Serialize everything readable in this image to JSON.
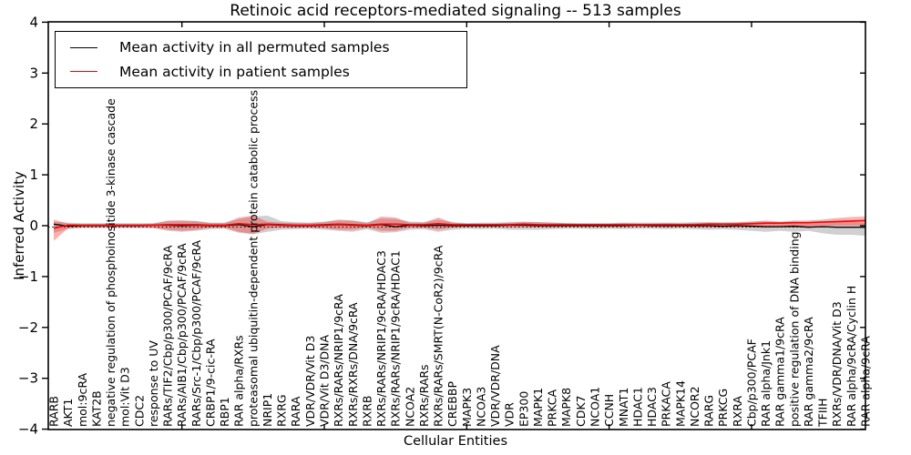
{
  "figure": {
    "title": "Retinoic acid receptors-mediated signaling -- 513 samples",
    "background": "#ffffff"
  },
  "legend": {
    "position": "upper left",
    "entries": [
      {
        "label": "Mean activity in all permuted samples",
        "color": "#000000"
      },
      {
        "label": "Mean activity in patient samples",
        "color": "#ff0000"
      }
    ]
  },
  "axes": {
    "ylabel": "Inferred Activity",
    "xlabel": "Cellular Entities",
    "yticks": [
      {
        "value": 4,
        "label": "4"
      },
      {
        "value": 3,
        "label": "3"
      },
      {
        "value": 2,
        "label": "2"
      },
      {
        "value": 1,
        "label": "1"
      },
      {
        "value": 0,
        "label": "0"
      },
      {
        "value": -1,
        "label": "−1"
      },
      {
        "value": -2,
        "label": "−2"
      },
      {
        "value": -3,
        "label": "−3"
      },
      {
        "value": -4,
        "label": "−4"
      }
    ]
  },
  "chart_data": {
    "type": "line",
    "title": "Retinoic acid receptors-mediated signaling -- 513 samples",
    "xlabel": "Cellular Entities",
    "ylabel": "Inferred Activity",
    "ylim": [
      -4,
      4
    ],
    "grid": false,
    "zero_reference_line": "dotted",
    "x_major_tick_every": 10,
    "legend_position": "upper left",
    "categories": [
      "RARB",
      "AKT1",
      "mol:9cRA",
      "KAT2B",
      "negative regulation of phosphoinositide 3-kinase cascade",
      "mol:Vit D3",
      "CDC2",
      "response to UV",
      "RARs/TIF2/Cbp/p300/PCAF/9cRA",
      "RARs/AIB1/Cbp/p300/PCAF/9cRA",
      "RARs/Src-1/Cbp/p300/PCAF/9cRA",
      "CRBP1/9-cic-RA",
      "RBP1",
      "RAR alpha/RXRs",
      "proteasomal ubiquitin-dependent protein catabolic process",
      "NRIP1",
      "RXRG",
      "RARA",
      "VDR/VDR/Vit D3",
      "VDR/Vit D3/DNA",
      "RXRs/RARs/NRIP1/9cRA",
      "RXRs/RXRs/DNA/9cRA",
      "RXRB",
      "RXRs/RARs/NRIP1/9cRA/HDAC3",
      "RXRs/RARs/NRIP1/9cRA/HDAC1",
      "NCOA2",
      "RXRs/RARs",
      "RXRs/RARs/SMRT(N-CoR2)/9cRA",
      "CREBBP",
      "MAPK3",
      "NCOA3",
      "VDR/VDR/DNA",
      "VDR",
      "EP300",
      "MAPK1",
      "PRKCA",
      "MAPK8",
      "CDK7",
      "NCOA1",
      "CCNH",
      "MNAT1",
      "HDAC1",
      "HDAC3",
      "PRKACA",
      "MAPK14",
      "NCOR2",
      "RARG",
      "PRKCG",
      "RXRA",
      "Cbp/p300/PCAF",
      "RAR alpha/Jnk1",
      "RAR gamma1/9cRA",
      "positive regulation of DNA binding",
      "RAR gamma2/9cRA",
      "TFIIH",
      "RXRs/VDR/DNA/Vit D3",
      "RAR alpha/9cRA/Cyclin H",
      "RAR alpha/9cRA"
    ],
    "series": [
      {
        "name": "Mean activity in all permuted samples",
        "color": "#000000",
        "band_color": "rgba(120,120,120,0.35)",
        "values": [
          0.03,
          -0.01,
          0.0,
          0.0,
          0.0,
          0.0,
          0.0,
          0.01,
          0.01,
          0.0,
          0.01,
          0.0,
          0.0,
          0.02,
          -0.02,
          0.02,
          0.01,
          0.0,
          0.0,
          0.01,
          0.02,
          0.01,
          0.0,
          0.02,
          -0.02,
          0.01,
          0.0,
          0.01,
          0.0,
          0.0,
          0.0,
          0.0,
          0.01,
          0.01,
          0.0,
          0.0,
          0.0,
          0.0,
          0.0,
          0.0,
          0.0,
          0.01,
          0.0,
          0.0,
          0.0,
          0.0,
          0.0,
          -0.01,
          0.0,
          -0.01,
          -0.02,
          -0.02,
          -0.01,
          -0.03,
          -0.02,
          -0.03,
          -0.03,
          -0.03
        ],
        "band_upper": [
          0.08,
          0.06,
          0.05,
          0.05,
          0.05,
          0.05,
          0.05,
          0.05,
          0.09,
          0.1,
          0.09,
          0.06,
          0.06,
          0.13,
          0.18,
          0.2,
          0.09,
          0.07,
          0.06,
          0.08,
          0.1,
          0.1,
          0.07,
          0.14,
          0.13,
          0.08,
          0.07,
          0.12,
          0.07,
          0.05,
          0.06,
          0.06,
          0.07,
          0.08,
          0.07,
          0.06,
          0.05,
          0.05,
          0.05,
          0.05,
          0.06,
          0.06,
          0.06,
          0.06,
          0.06,
          0.07,
          0.07,
          0.07,
          0.07,
          0.08,
          0.08,
          0.07,
          0.08,
          0.06,
          0.08,
          0.08,
          0.08,
          0.06
        ],
        "band_lower": [
          -0.14,
          -0.07,
          -0.05,
          -0.05,
          -0.05,
          -0.05,
          -0.05,
          -0.05,
          -0.1,
          -0.12,
          -0.1,
          -0.07,
          -0.06,
          -0.14,
          -0.17,
          -0.12,
          -0.08,
          -0.07,
          -0.06,
          -0.08,
          -0.1,
          -0.12,
          -0.07,
          -0.14,
          -0.13,
          -0.08,
          -0.07,
          -0.12,
          -0.08,
          -0.06,
          -0.07,
          -0.06,
          -0.08,
          -0.08,
          -0.08,
          -0.07,
          -0.06,
          -0.06,
          -0.07,
          -0.06,
          -0.07,
          -0.06,
          -0.06,
          -0.07,
          -0.06,
          -0.07,
          -0.08,
          -0.07,
          -0.08,
          -0.1,
          -0.12,
          -0.1,
          -0.12,
          -0.1,
          -0.15,
          -0.18,
          -0.18,
          -0.2
        ]
      },
      {
        "name": "Mean activity in patient samples",
        "color": "#ff0000",
        "band_color": "rgba(255,30,30,0.35)",
        "values": [
          -0.05,
          0.01,
          0.01,
          0.01,
          0.01,
          0.01,
          0.01,
          0.01,
          0.02,
          0.02,
          0.02,
          0.01,
          0.01,
          0.04,
          0.02,
          0.03,
          0.02,
          0.01,
          0.01,
          0.02,
          0.03,
          0.02,
          0.01,
          0.03,
          0.03,
          0.02,
          0.02,
          0.04,
          0.02,
          0.02,
          0.02,
          0.02,
          0.02,
          0.03,
          0.02,
          0.02,
          0.02,
          0.02,
          0.02,
          0.02,
          0.02,
          0.02,
          0.02,
          0.02,
          0.02,
          0.02,
          0.03,
          0.03,
          0.03,
          0.04,
          0.05,
          0.05,
          0.06,
          0.06,
          0.07,
          0.08,
          0.09,
          0.1
        ],
        "band_upper": [
          0.12,
          0.04,
          0.03,
          0.03,
          0.03,
          0.03,
          0.03,
          0.04,
          0.1,
          0.1,
          0.09,
          0.05,
          0.05,
          0.16,
          0.2,
          0.08,
          0.06,
          0.05,
          0.05,
          0.07,
          0.12,
          0.1,
          0.05,
          0.18,
          0.16,
          0.06,
          0.06,
          0.16,
          0.06,
          0.04,
          0.04,
          0.04,
          0.06,
          0.07,
          0.07,
          0.06,
          0.05,
          0.04,
          0.04,
          0.04,
          0.05,
          0.04,
          0.04,
          0.05,
          0.04,
          0.05,
          0.06,
          0.05,
          0.06,
          0.08,
          0.1,
          0.08,
          0.1,
          0.1,
          0.12,
          0.15,
          0.17,
          0.18
        ],
        "band_lower": [
          -0.3,
          -0.05,
          -0.03,
          -0.03,
          -0.03,
          -0.03,
          -0.03,
          -0.04,
          -0.08,
          -0.1,
          -0.08,
          -0.04,
          -0.04,
          -0.12,
          -0.16,
          -0.06,
          -0.04,
          -0.04,
          -0.04,
          -0.05,
          -0.08,
          -0.08,
          -0.04,
          -0.1,
          -0.1,
          -0.04,
          -0.04,
          -0.08,
          -0.04,
          -0.02,
          -0.02,
          -0.02,
          -0.03,
          -0.03,
          -0.03,
          -0.03,
          -0.02,
          -0.02,
          -0.02,
          -0.02,
          -0.02,
          -0.02,
          -0.02,
          -0.03,
          -0.02,
          -0.03,
          -0.03,
          -0.03,
          -0.03,
          -0.03,
          -0.04,
          -0.03,
          -0.04,
          -0.02,
          -0.01,
          0.0,
          0.0,
          0.0
        ]
      }
    ]
  }
}
